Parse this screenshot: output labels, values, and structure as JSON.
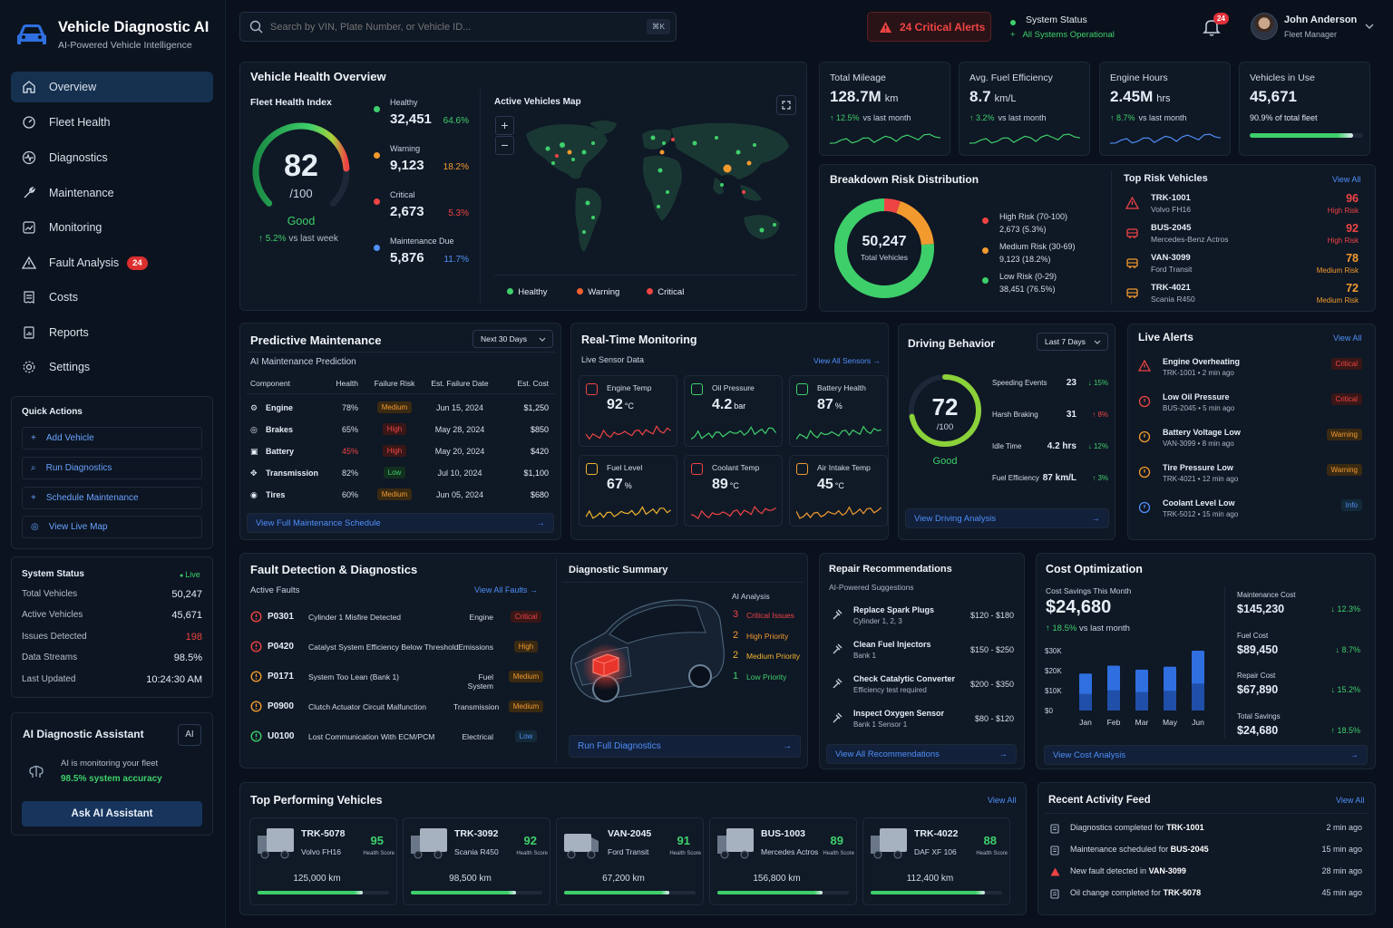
{
  "app": {
    "title": "Vehicle Diagnostic AI",
    "subtitle": "AI-Powered Vehicle Intelligence"
  },
  "search": {
    "placeholder": "Search by VIN, Plate Number, or Vehicle ID...",
    "shortcut": "⌘K"
  },
  "header": {
    "critical_alerts": "24 Critical Alerts",
    "system_status_label": "System Status",
    "system_status_value": "All Systems Operational",
    "notif_count": "24",
    "user_name": "John Anderson",
    "user_role": "Fleet Manager"
  },
  "nav": {
    "items": [
      {
        "label": "Overview",
        "icon": "home-icon"
      },
      {
        "label": "Fleet Health",
        "icon": "gauge-icon"
      },
      {
        "label": "Diagnostics",
        "icon": "pulse-icon"
      },
      {
        "label": "Maintenance",
        "icon": "wrench-icon"
      },
      {
        "label": "Monitoring",
        "icon": "chart-icon"
      },
      {
        "label": "Fault Analysis",
        "icon": "warning-icon",
        "badge": "24"
      },
      {
        "label": "Costs",
        "icon": "receipt-icon"
      },
      {
        "label": "Reports",
        "icon": "report-icon"
      },
      {
        "label": "Settings",
        "icon": "gear-icon"
      }
    ]
  },
  "quick_actions": {
    "title": "Quick Actions",
    "items": [
      "Add Vehicle",
      "Run Diagnostics",
      "Schedule Maintenance",
      "View Live Map"
    ]
  },
  "system_status": {
    "title": "System Status",
    "live": "Live",
    "rows": [
      {
        "label": "Total Vehicles",
        "value": "50,247"
      },
      {
        "label": "Active Vehicles",
        "value": "45,671"
      },
      {
        "label": "Issues Detected",
        "value": "198"
      },
      {
        "label": "Data Streams",
        "value": "98.5%"
      },
      {
        "label": "Last Updated",
        "value": "10:24:30 AM"
      }
    ]
  },
  "assistant": {
    "title": "AI Diagnostic Assistant",
    "badge": "AI",
    "line1": "AI is monitoring your fleet",
    "line2": "98.5% system accuracy",
    "button": "Ask AI Assistant"
  },
  "health": {
    "title": "Vehicle Health Overview",
    "index_label": "Fleet Health Index",
    "score": "82",
    "score_max": "/100",
    "score_value": 0.82,
    "status": "Good",
    "trend": "5.2%",
    "trend_label": "vs last week",
    "stats": [
      {
        "label": "Healthy",
        "value": "32,451",
        "pct": "64.6%",
        "color": "#3ecf6b"
      },
      {
        "label": "Warning",
        "value": "9,123",
        "pct": "18.2%",
        "color": "#f29a2e"
      },
      {
        "label": "Critical",
        "value": "2,673",
        "pct": "5.3%",
        "color": "#ef4444"
      },
      {
        "label": "Maintenance Due",
        "value": "5,876",
        "pct": "11.7%",
        "color": "#4f8ff7"
      }
    ],
    "map_title": "Active Vehicles Map",
    "legend": [
      "Healthy",
      "Warning",
      "Critical"
    ]
  },
  "kpis": [
    {
      "label": "Total Mileage",
      "value": "128.7M",
      "unit": "km",
      "trend": "12.5%",
      "trend_label": "vs last month"
    },
    {
      "label": "Avg. Fuel Efficiency",
      "value": "8.7",
      "unit": "km/L",
      "trend": "3.2%",
      "trend_label": "vs last month"
    },
    {
      "label": "Engine Hours",
      "value": "2.45M",
      "unit": "hrs",
      "trend": "8.7%",
      "trend_label": "vs last month"
    },
    {
      "label": "Vehicles in Use",
      "value": "45,671",
      "unit": "",
      "trend": "90.9% of total fleet",
      "trend_label": "",
      "fill": 0.909
    }
  ],
  "risk": {
    "title": "Breakdown Risk Distribution",
    "total": "50,247",
    "total_label": "Total Vehicles",
    "segments": [
      {
        "label": "High Risk (70-100)",
        "value": "2,673 (5.3%)",
        "color": "#ef4444"
      },
      {
        "label": "Medium Risk (30-69)",
        "value": "9,123 (18.2%)",
        "color": "#f29a2e"
      },
      {
        "label": "Low Risk (0-29)",
        "value": "38,451 (76.5%)",
        "color": "#3ecf6b"
      }
    ]
  },
  "top_risk": {
    "title": "Top Risk Vehicles",
    "view_all": "View All",
    "items": [
      {
        "id": "TRK-1001",
        "model": "Volvo FH16",
        "score": "96",
        "level": "High Risk"
      },
      {
        "id": "BUS-2045",
        "model": "Mercedes-Benz Actros",
        "score": "92",
        "level": "High Risk"
      },
      {
        "id": "VAN-3099",
        "model": "Ford Transit",
        "score": "78",
        "level": "Medium Risk"
      },
      {
        "id": "TRK-4021",
        "model": "Scania R450",
        "score": "72",
        "level": "Medium Risk"
      }
    ]
  },
  "predictive": {
    "title": "Predictive Maintenance",
    "range": "Next 30 Days",
    "subtitle": "AI Maintenance Prediction",
    "columns": [
      "Component",
      "Health",
      "Failure Risk",
      "Est. Failure Date",
      "Est. Cost"
    ],
    "rows": [
      {
        "component": "Engine",
        "health": "78%",
        "risk": "Medium",
        "date": "Jun 15, 2024",
        "cost": "$1,250"
      },
      {
        "component": "Brakes",
        "health": "65%",
        "risk": "High",
        "date": "May 28, 2024",
        "cost": "$850"
      },
      {
        "component": "Battery",
        "health": "45%",
        "risk": "High",
        "date": "May 20, 2024",
        "cost": "$420"
      },
      {
        "component": "Transmission",
        "health": "82%",
        "risk": "Low",
        "date": "Jul 10, 2024",
        "cost": "$1,100"
      },
      {
        "component": "Tires",
        "health": "60%",
        "risk": "Medium",
        "date": "Jun 05, 2024",
        "cost": "$680"
      }
    ],
    "link": "View Full Maintenance Schedule"
  },
  "realtime": {
    "title": "Real-Time Monitoring",
    "subtitle": "Live Sensor Data",
    "view_all": "View All Sensors",
    "sensors": [
      {
        "label": "Engine Temp",
        "value": "92",
        "unit": "°C",
        "color": "#ef4444"
      },
      {
        "label": "Oil Pressure",
        "value": "4.2",
        "unit": "bar",
        "color": "#3ecf6b"
      },
      {
        "label": "Battery Health",
        "value": "87",
        "unit": "%",
        "color": "#3ecf6b"
      },
      {
        "label": "Fuel Level",
        "value": "67",
        "unit": "%",
        "color": "#f2b42e"
      },
      {
        "label": "Coolant Temp",
        "value": "89",
        "unit": "°C",
        "color": "#ef4444"
      },
      {
        "label": "Air Intake Temp",
        "value": "45",
        "unit": "°C",
        "color": "#f29a2e"
      }
    ]
  },
  "driving": {
    "title": "Driving Behavior",
    "range": "Last 7 Days",
    "score": "72",
    "score_max": "/100",
    "score_value": 0.72,
    "status": "Good",
    "rows": [
      {
        "label": "Speeding Events",
        "value": "23",
        "trend": "15%",
        "dir": "down",
        "color": "#3ecf6b"
      },
      {
        "label": "Harsh Braking",
        "value": "31",
        "trend": "8%",
        "dir": "up",
        "color": "#ef4444"
      },
      {
        "label": "Idle Time",
        "value": "4.2 hrs",
        "trend": "12%",
        "dir": "down",
        "color": "#3ecf6b"
      },
      {
        "label": "Fuel Efficiency",
        "value": "87 km/L",
        "trend": "3%",
        "dir": "up",
        "color": "#3ecf6b"
      }
    ],
    "link": "View Driving Analysis"
  },
  "alerts": {
    "title": "Live Alerts",
    "view_all": "View All",
    "items": [
      {
        "title": "Engine Overheating",
        "meta": "TRK-1001 • 2 min ago",
        "level": "Critical"
      },
      {
        "title": "Low Oil Pressure",
        "meta": "BUS-2045 • 5 min ago",
        "level": "Critical"
      },
      {
        "title": "Battery Voltage Low",
        "meta": "VAN-3099 • 8 min ago",
        "level": "Warning"
      },
      {
        "title": "Tire Pressure Low",
        "meta": "TRK-4021 • 12 min ago",
        "level": "Warning"
      },
      {
        "title": "Coolant Level Low",
        "meta": "TRK-5012 • 15 min ago",
        "level": "Info"
      }
    ]
  },
  "faults": {
    "title": "Fault Detection & Diagnostics",
    "subtitle": "Active Faults",
    "view_all": "View All Faults",
    "items": [
      {
        "code": "P0301",
        "desc": "Cylinder 1 Misfire Detected",
        "system": "Engine",
        "level": "Critical"
      },
      {
        "code": "P0420",
        "desc": "Catalyst System Efficiency Below Threshold",
        "system": "Emissions",
        "level": "High"
      },
      {
        "code": "P0171",
        "desc": "System Too Lean (Bank 1)",
        "system": "Fuel System",
        "level": "Medium"
      },
      {
        "code": "P0900",
        "desc": "Clutch Actuator Circuit Malfunction",
        "system": "Transmission",
        "level": "Medium"
      },
      {
        "code": "U0100",
        "desc": "Lost Communication With ECM/PCM",
        "system": "Electrical",
        "level": "Low"
      }
    ]
  },
  "diag": {
    "title": "Diagnostic Summary",
    "ai_label": "AI Analysis",
    "items": [
      {
        "n": "3",
        "label": "Critical Issues",
        "color": "#ef4444"
      },
      {
        "n": "2",
        "label": "High Priority",
        "color": "#f29a2e"
      },
      {
        "n": "2",
        "label": "Medium Priority",
        "color": "#f2b42e"
      },
      {
        "n": "1",
        "label": "Low Priority",
        "color": "#3ecf6b"
      }
    ],
    "button": "Run Full Diagnostics"
  },
  "repairs": {
    "title": "Repair Recommendations",
    "subtitle": "AI-Powered Suggestions",
    "items": [
      {
        "title": "Replace Spark Plugs",
        "sub": "Cylinder 1, 2, 3",
        "cost": "$120 - $180"
      },
      {
        "title": "Clean Fuel Injectors",
        "sub": "Bank 1",
        "cost": "$150 - $250"
      },
      {
        "title": "Check Catalytic Converter",
        "sub": "Efficiency test required",
        "cost": "$200 - $350"
      },
      {
        "title": "Inspect Oxygen Sensor",
        "sub": "Bank 1 Sensor 1",
        "cost": "$80 - $120"
      }
    ],
    "link": "View All Recommendations"
  },
  "cost": {
    "title": "Cost Optimization",
    "savings_label": "Cost Savings This Month",
    "savings": "$24,680",
    "trend": "18.5%",
    "trend_label": "vs last month",
    "metrics": [
      {
        "label": "Maintenance Cost",
        "value": "$145,230",
        "trend": "12.3%"
      },
      {
        "label": "Fuel Cost",
        "value": "$89,450",
        "trend": "8.7%"
      },
      {
        "label": "Repair Cost",
        "value": "$67,890",
        "trend": "15.2%"
      },
      {
        "label": "Total Savings",
        "value": "$24,680",
        "trend": "18.5%",
        "up": true
      }
    ],
    "link": "View Cost Analysis"
  },
  "chart_data": {
    "type": "bar",
    "categories": [
      "Jan",
      "Feb",
      "Mar",
      "May",
      "Jun"
    ],
    "values": [
      18500,
      22500,
      20500,
      22000,
      30000
    ],
    "ylim": [
      0,
      30000
    ],
    "yticks": [
      "$0",
      "$10K",
      "$20K",
      "$30K"
    ],
    "xlabel": "",
    "ylabel": ""
  },
  "top_vehicles": {
    "title": "Top Performing Vehicles",
    "view_all": "View All",
    "score_label": "Health Score",
    "items": [
      {
        "id": "TRK-5078",
        "model": "Volvo FH16",
        "score": "95",
        "km": "125,000 km",
        "fill": 0.8
      },
      {
        "id": "TRK-3092",
        "model": "Scania R450",
        "score": "92",
        "km": "98,500 km",
        "fill": 0.8
      },
      {
        "id": "VAN-2045",
        "model": "Ford Transit",
        "score": "91",
        "km": "67,200 km",
        "fill": 0.8
      },
      {
        "id": "BUS-1003",
        "model": "Mercedes Actros",
        "score": "89",
        "km": "156,800 km",
        "fill": 0.8
      },
      {
        "id": "TRK-4022",
        "model": "DAF XF 106",
        "score": "88",
        "km": "112,400 km",
        "fill": 0.87
      }
    ]
  },
  "activity": {
    "title": "Recent Activity Feed",
    "view_all": "View All",
    "items": [
      {
        "text": "Diagnostics completed for ",
        "id": "TRK-1001",
        "time": "2 min ago"
      },
      {
        "text": "Maintenance scheduled for ",
        "id": "BUS-2045",
        "time": "15 min ago"
      },
      {
        "text": "New fault detected in ",
        "id": "VAN-3099",
        "time": "28 min ago"
      },
      {
        "text": "Oil change completed for ",
        "id": "TRK-5078",
        "time": "45 min ago"
      }
    ]
  }
}
